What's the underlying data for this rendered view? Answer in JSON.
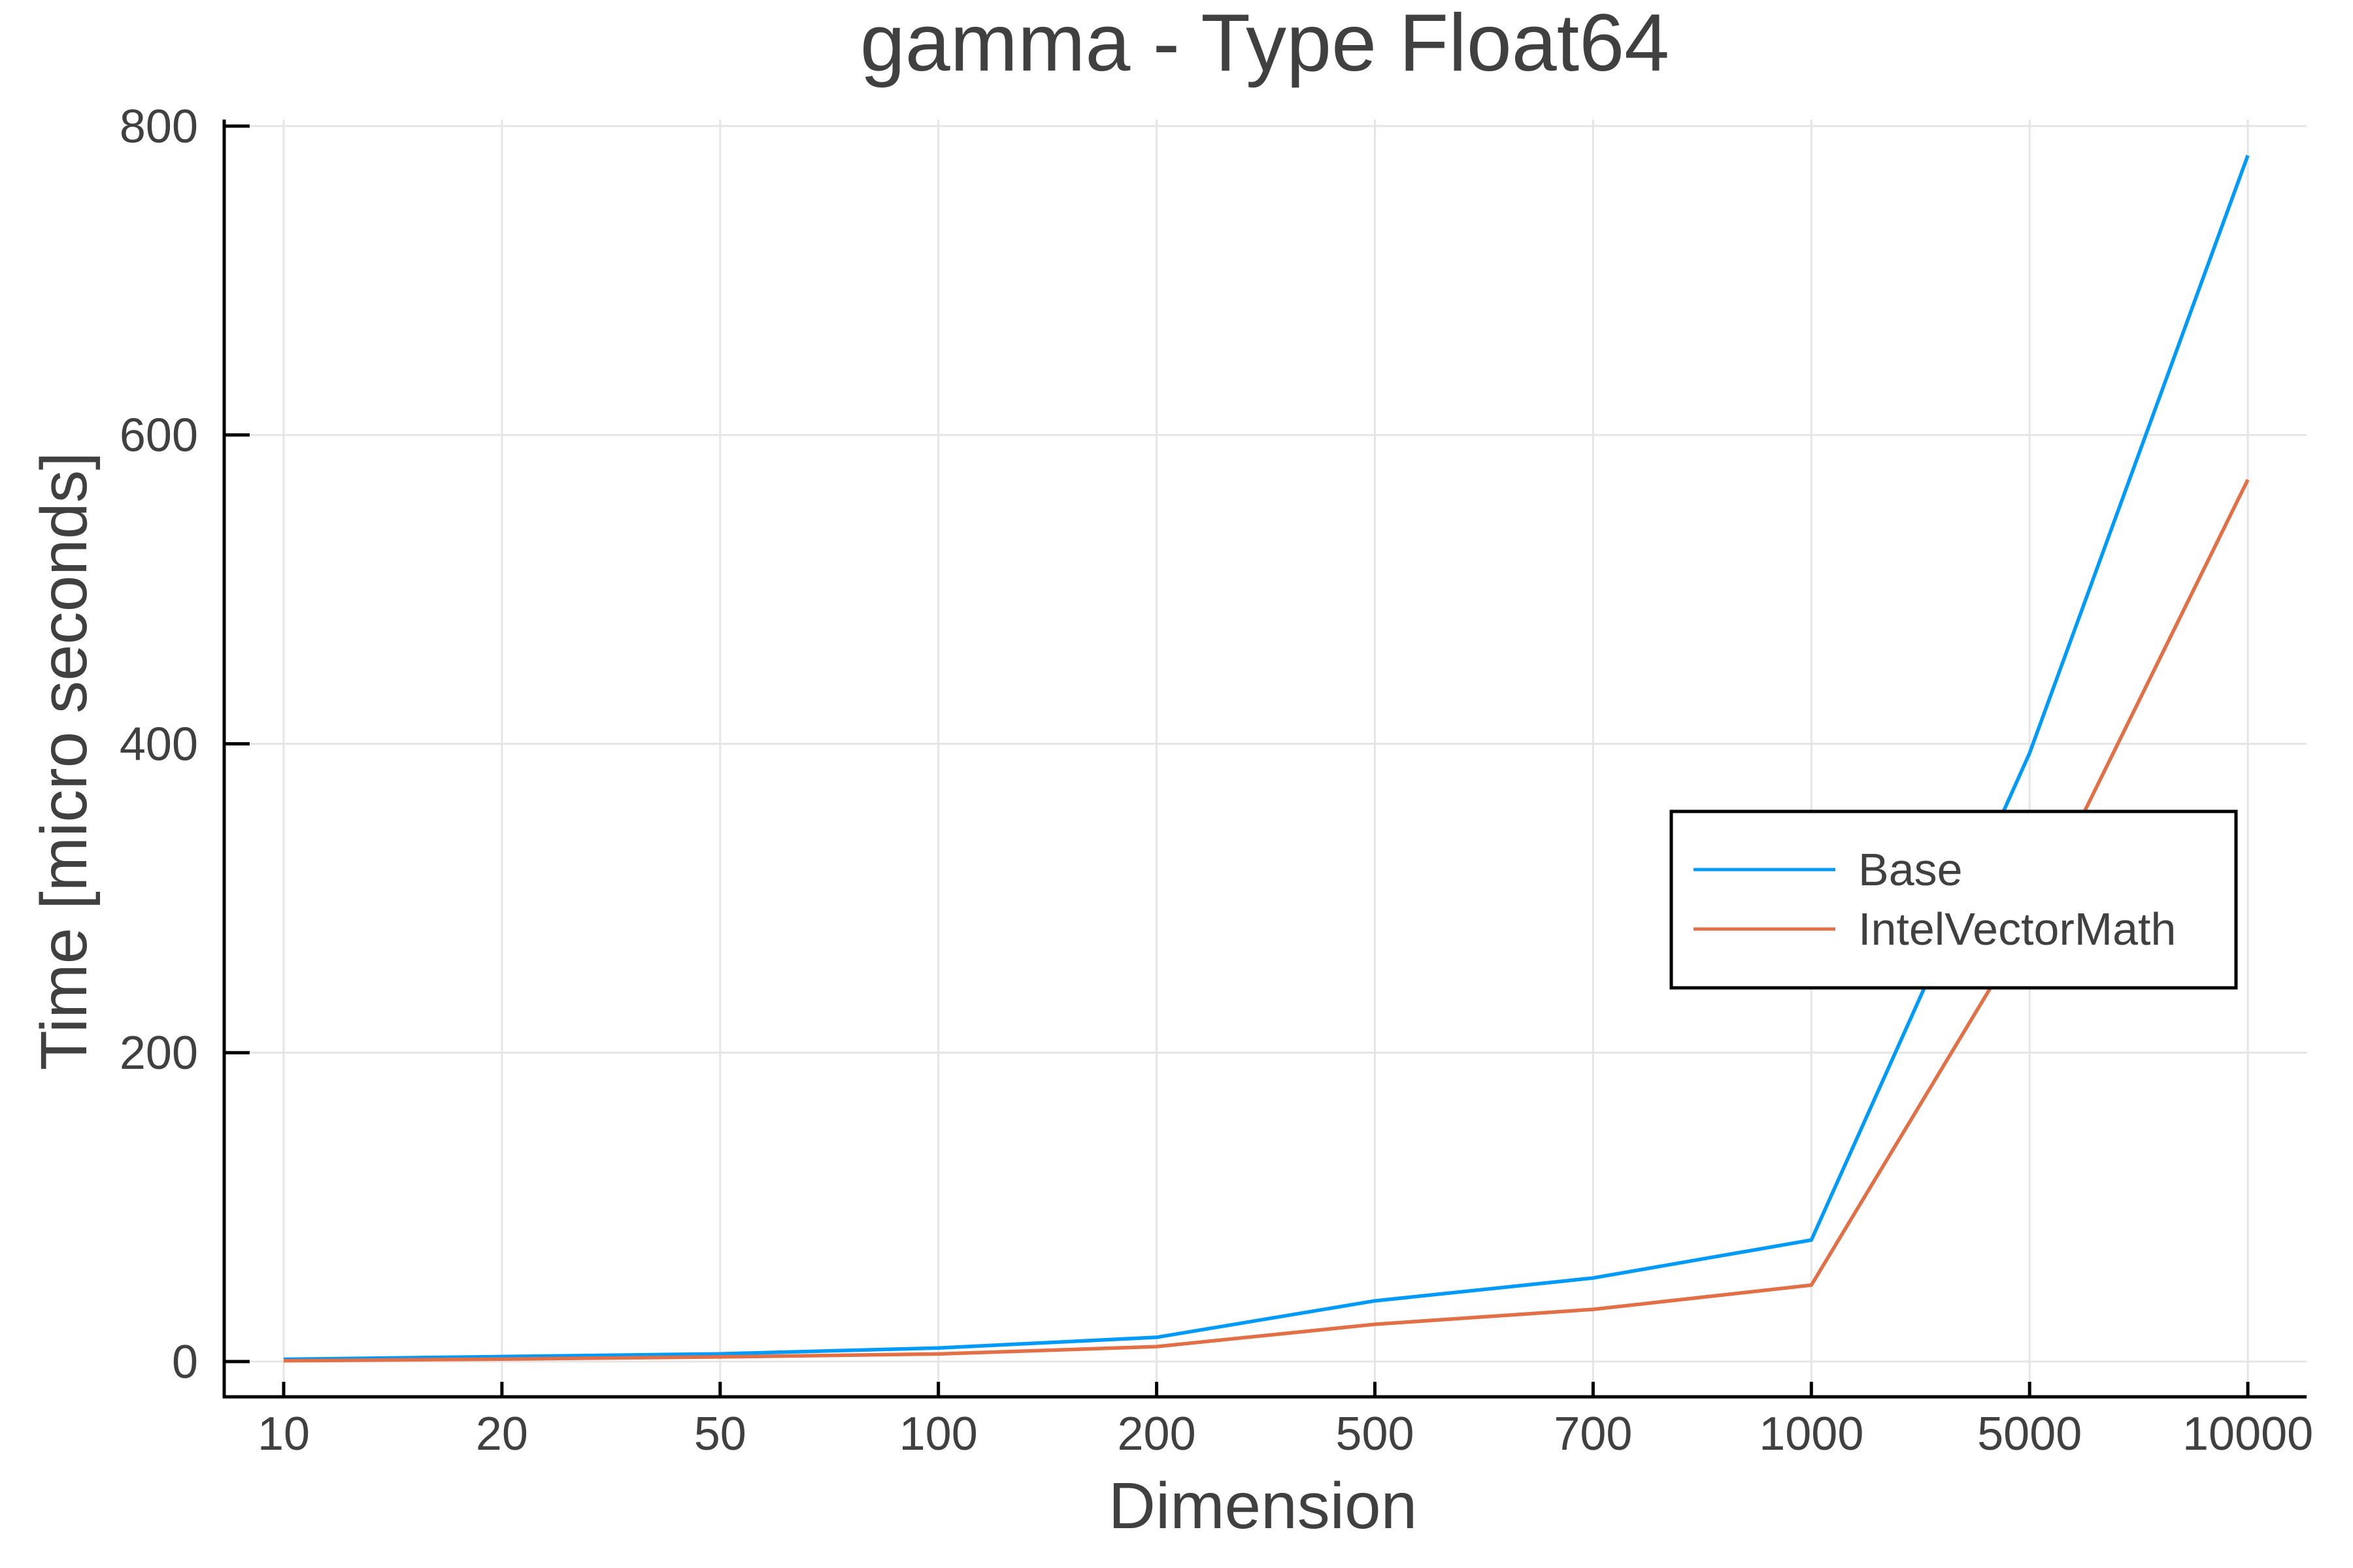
{
  "chart_data": {
    "type": "line",
    "title": "gamma - Type Float64",
    "xlabel": "Dimension",
    "ylabel": "Time [micro seconds]",
    "categories": [
      "10",
      "20",
      "50",
      "100",
      "200",
      "500",
      "700",
      "1000",
      "5000",
      "10000"
    ],
    "series": [
      {
        "name": "Base",
        "color": "#009AF9",
        "values": [
          1.5,
          3.2,
          5.0,
          8.8,
          15.7,
          39.3,
          54.1,
          78.7,
          394,
          781
        ]
      },
      {
        "name": "IntelVectorMath",
        "color": "#E26F46",
        "values": [
          0.5,
          1.6,
          3.0,
          4.9,
          9.7,
          24.1,
          33.8,
          49.5,
          284,
          571
        ]
      }
    ],
    "yticks": [
      0,
      200,
      400,
      600,
      800
    ],
    "ylim": [
      -22,
      823
    ],
    "x_scale": "categorical (evenly spaced)",
    "grid": true,
    "legend_position": "right, vertically centered-low (inside plot)"
  },
  "legend": {
    "items": [
      {
        "label": "Base",
        "color": "#009AF9"
      },
      {
        "label": "IntelVectorMath",
        "color": "#E26F46"
      }
    ]
  },
  "colors": {
    "text": "#404040",
    "axis": "#000000",
    "grid": "#E5E5E5",
    "background": "#FFFFFF"
  }
}
